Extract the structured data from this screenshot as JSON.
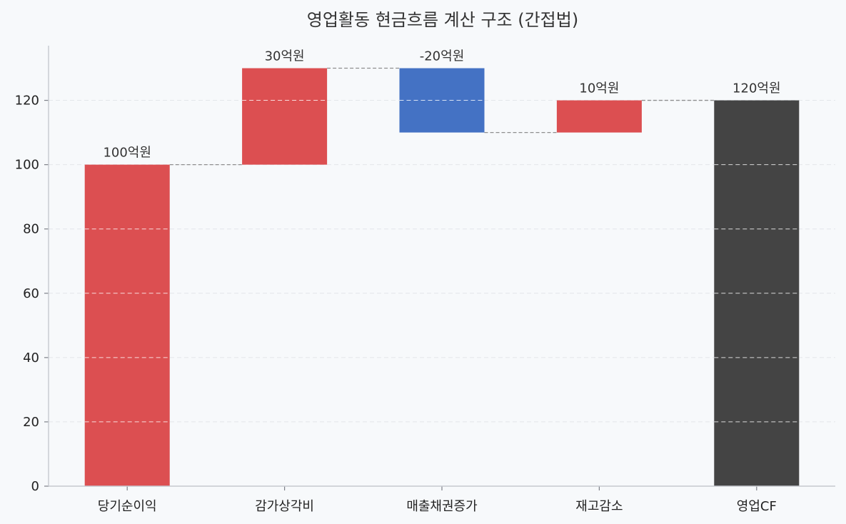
{
  "chart_data": {
    "type": "waterfall",
    "title": "영업활동 현금흐름 계산 구조 (간접법)",
    "xlabel": "",
    "ylabel": "",
    "categories": [
      "당기순이익",
      "감가상각비",
      "매출채권증가",
      "재고감소",
      "영업CF"
    ],
    "values": [
      100,
      30,
      -20,
      10,
      120
    ],
    "value_labels": [
      "100억원",
      "30억원",
      "-20억원",
      "10억원",
      "120억원"
    ],
    "bar_kind": [
      "start",
      "change",
      "change",
      "change",
      "total"
    ],
    "ylim": [
      0,
      137
    ],
    "yticks": [
      0,
      20,
      40,
      60,
      80,
      100,
      120
    ],
    "grid": true,
    "colors": {
      "positive": "#dc4f51",
      "negative": "#4472c4",
      "total": "#444444",
      "background": "#f7f9fb",
      "grid": "#e3e6ea",
      "connector": "#8e8e8e"
    }
  }
}
